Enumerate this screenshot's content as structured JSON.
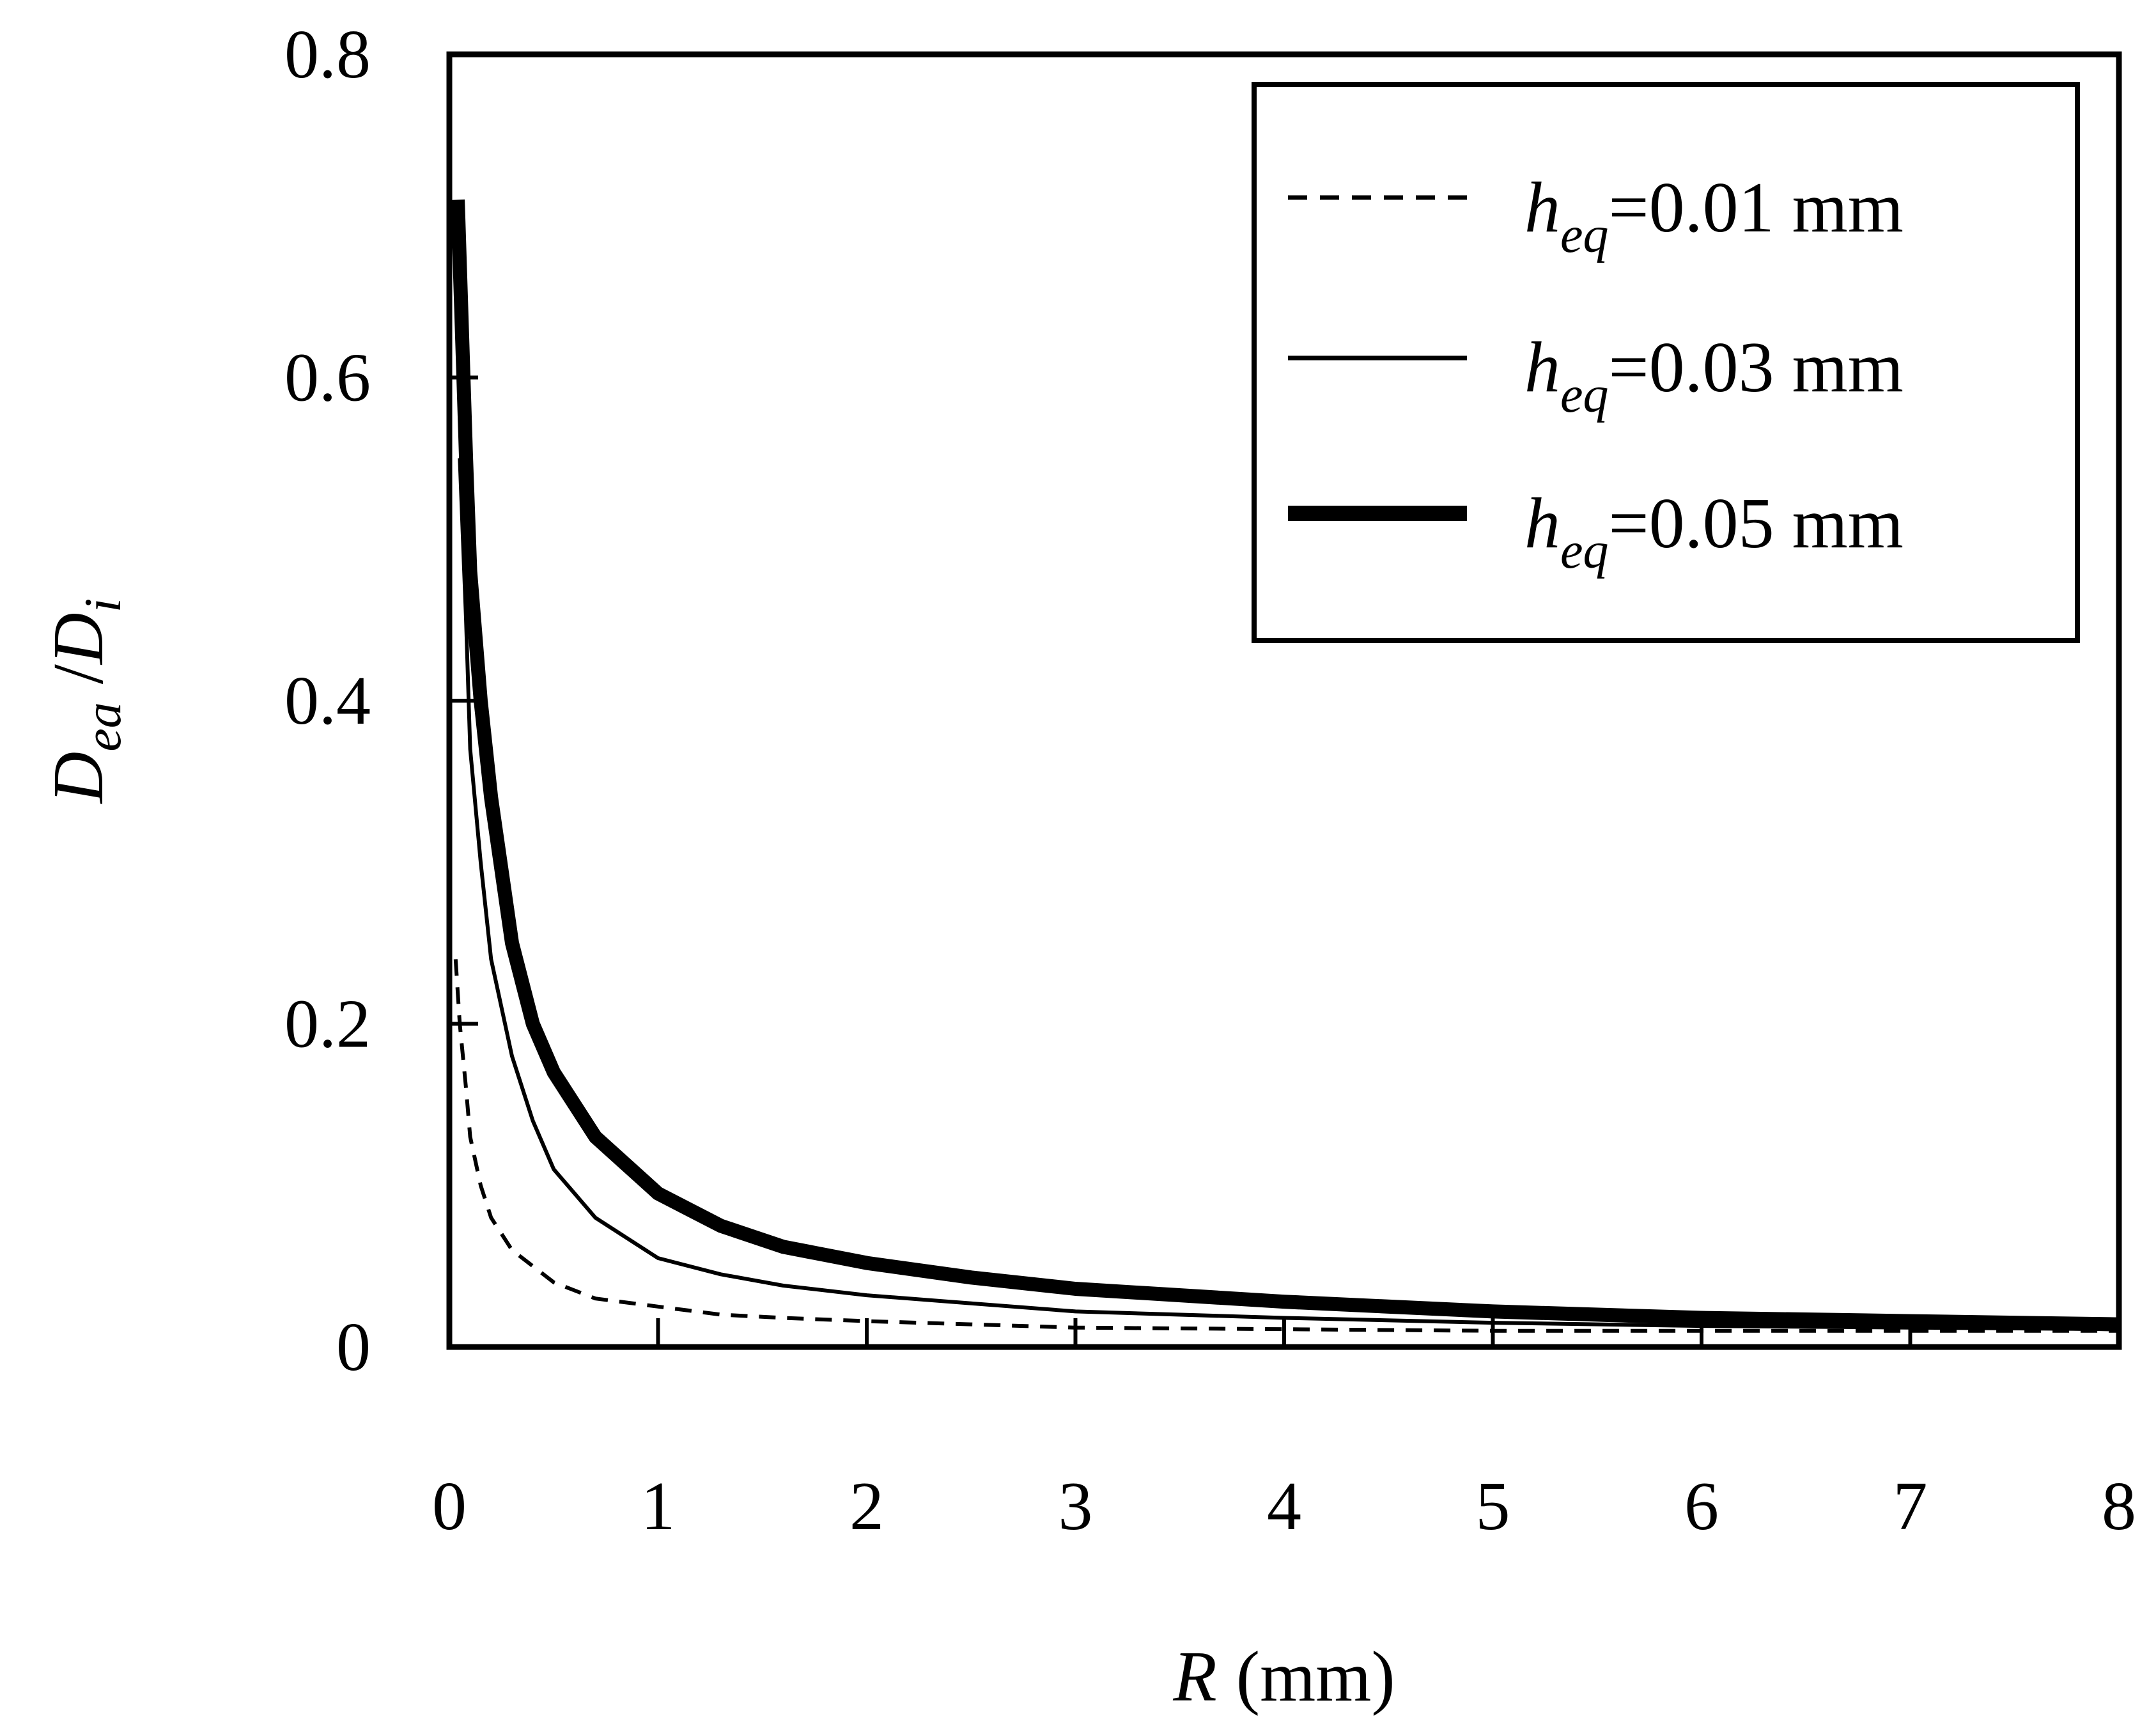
{
  "chart_data": {
    "type": "line",
    "title": "",
    "xlabel": {
      "var": "R",
      "unit": "(mm)"
    },
    "ylabel": {
      "num": "D",
      "num_sub": "ea",
      "sep": " /",
      "den": "D",
      "den_sub": "i"
    },
    "xlim": [
      0,
      8
    ],
    "ylim": [
      0,
      0.8
    ],
    "xticks": [
      0,
      1,
      2,
      3,
      4,
      5,
      6,
      7,
      8
    ],
    "yticks": [
      0,
      0.2,
      0.4,
      0.6,
      0.8
    ],
    "xtick_labels": [
      "0",
      "1",
      "2",
      "3",
      "4",
      "5",
      "6",
      "7",
      "8"
    ],
    "ytick_labels": [
      "0",
      "0.2",
      "0.4",
      "0.6",
      "0.8"
    ],
    "grid": false,
    "legend_position": "top-right",
    "series": [
      {
        "name": "heq=0.01 mm",
        "label_var": "h",
        "label_sub": "eq",
        "label_rest": "=0.01 mm",
        "style": "dashed",
        "width": "thin",
        "x": [
          0.03,
          0.05,
          0.08,
          0.1,
          0.15,
          0.2,
          0.3,
          0.5,
          0.7,
          1.0,
          1.3,
          1.6,
          2.0,
          2.5,
          3.0,
          4.0,
          5.0,
          6.0,
          7.0,
          8.0
        ],
        "y": [
          0.24,
          0.2,
          0.16,
          0.13,
          0.1,
          0.08,
          0.06,
          0.04,
          0.03,
          0.025,
          0.02,
          0.018,
          0.016,
          0.014,
          0.012,
          0.011,
          0.01,
          0.01,
          0.01,
          0.01
        ]
      },
      {
        "name": "heq=0.03 mm",
        "label_var": "h",
        "label_sub": "eq",
        "label_rest": "=0.03 mm",
        "style": "solid",
        "width": "thin",
        "x": [
          0.05,
          0.08,
          0.1,
          0.15,
          0.2,
          0.3,
          0.4,
          0.5,
          0.7,
          1.0,
          1.3,
          1.6,
          2.0,
          2.5,
          3.0,
          4.0,
          5.0,
          6.0,
          7.0,
          8.0
        ],
        "y": [
          0.55,
          0.45,
          0.37,
          0.3,
          0.24,
          0.18,
          0.14,
          0.11,
          0.08,
          0.055,
          0.045,
          0.038,
          0.032,
          0.027,
          0.022,
          0.018,
          0.015,
          0.013,
          0.012,
          0.011
        ]
      },
      {
        "name": "heq=0.05 mm",
        "label_var": "h",
        "label_sub": "eq",
        "label_rest": "=0.05 mm",
        "style": "solid",
        "width": "thick",
        "x": [
          0.04,
          0.06,
          0.08,
          0.1,
          0.15,
          0.2,
          0.3,
          0.4,
          0.5,
          0.7,
          1.0,
          1.3,
          1.6,
          2.0,
          2.5,
          3.0,
          4.0,
          5.0,
          6.0,
          7.0,
          8.0
        ],
        "y": [
          0.71,
          0.63,
          0.55,
          0.48,
          0.4,
          0.34,
          0.25,
          0.2,
          0.17,
          0.13,
          0.095,
          0.075,
          0.062,
          0.052,
          0.043,
          0.036,
          0.028,
          0.022,
          0.018,
          0.016,
          0.014
        ]
      }
    ]
  }
}
